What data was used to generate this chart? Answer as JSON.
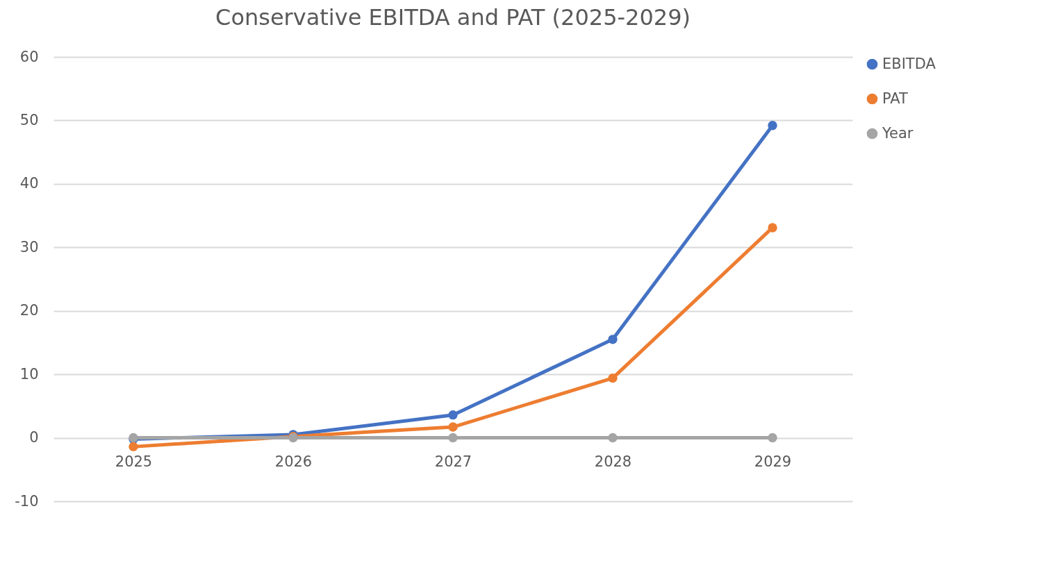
{
  "chart_data": {
    "type": "line",
    "title": "Conservative EBITDA and PAT (2025-2029)",
    "categories": [
      "2025",
      "2026",
      "2027",
      "2028",
      "2029"
    ],
    "series": [
      {
        "name": "EBITDA",
        "color": "#4472c4",
        "values": [
          -0.2,
          0.5,
          3.6,
          15.5,
          49.2
        ]
      },
      {
        "name": "PAT",
        "color": "#ed7d31",
        "values": [
          -1.4,
          0.2,
          1.7,
          9.4,
          33.1
        ]
      },
      {
        "name": "Year",
        "color": "#a5a5a5",
        "values": [
          0,
          0,
          0,
          0,
          0
        ]
      }
    ],
    "ylim": [
      -10,
      60
    ],
    "yticks": [
      -10,
      0,
      10,
      20,
      30,
      40,
      50,
      60
    ],
    "grid": "y",
    "legend": "right",
    "marker": "circle",
    "line_style": "solid"
  }
}
